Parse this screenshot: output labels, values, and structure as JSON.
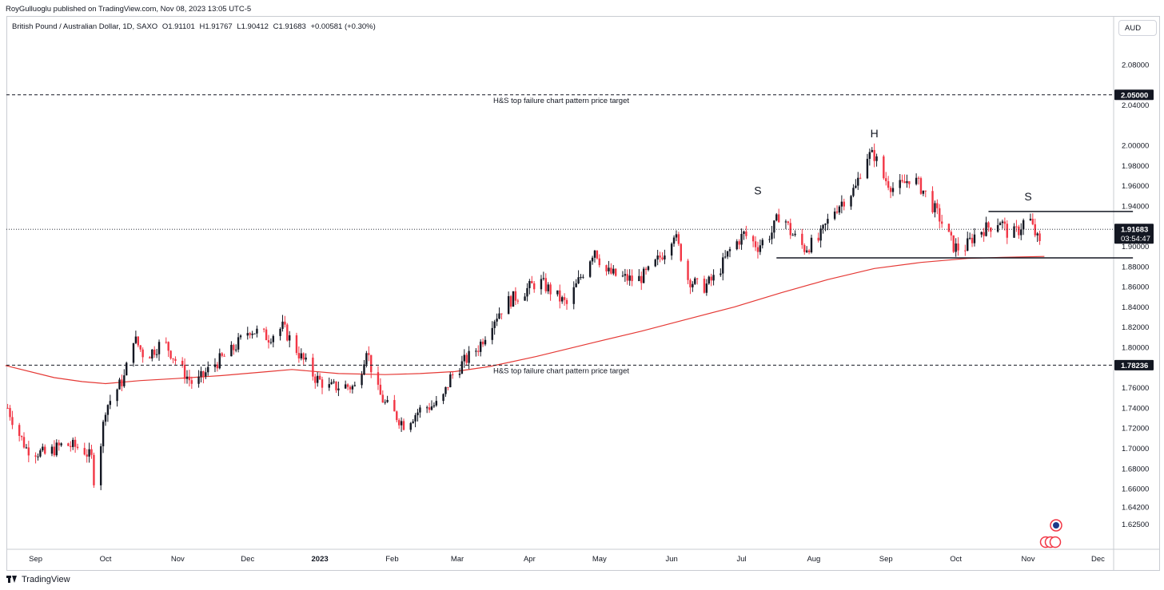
{
  "header": {
    "published": "RoyGulluoglu published on TradingView.com, Nov 08, 2023 13:05 UTC-5"
  },
  "legend": {
    "symbol": "British Pound / Australian Dollar, 1D, SAXO",
    "open": "O1.91101",
    "high": "H1.91767",
    "low": "L1.90412",
    "close": "C1.91683",
    "change": "+0.00581 (+0.30%)"
  },
  "currency": "AUD",
  "footer": {
    "brand": "TradingView"
  },
  "chart_data": {
    "type": "candlestick",
    "ylim": [
      1.614,
      2.108
    ],
    "y_ticks": [
      "2.08000",
      "2.04000",
      "2.00000",
      "1.98000",
      "1.96000",
      "1.94000",
      "1.90000",
      "1.88000",
      "1.86000",
      "1.84000",
      "1.82000",
      "1.80000",
      "1.76000",
      "1.74000",
      "1.72000",
      "1.70000",
      "1.68000",
      "1.66000",
      "1.64200",
      "1.62500"
    ],
    "x_labels": [
      {
        "label": "Sep",
        "day": 0
      },
      {
        "label": "Oct",
        "day": 30
      },
      {
        "label": "Nov",
        "day": 61
      },
      {
        "label": "Dec",
        "day": 91
      },
      {
        "label": "2023",
        "day": 122
      },
      {
        "label": "Feb",
        "day": 153
      },
      {
        "label": "Mar",
        "day": 181
      },
      {
        "label": "Apr",
        "day": 212
      },
      {
        "label": "May",
        "day": 242
      },
      {
        "label": "Jun",
        "day": 273
      },
      {
        "label": "Jul",
        "day": 303
      },
      {
        "label": "Aug",
        "day": 334
      },
      {
        "label": "Sep",
        "day": 365
      },
      {
        "label": "Oct",
        "day": 395
      },
      {
        "label": "Nov",
        "day": 426
      },
      {
        "label": "Dec",
        "day": 456
      }
    ],
    "xlim_days": [
      -13,
      488
    ],
    "last_day": 433,
    "price_path": [
      [
        -12,
        1.74
      ],
      [
        -8,
        1.718
      ],
      [
        -4,
        1.7
      ],
      [
        4,
        1.694
      ],
      [
        12,
        1.704
      ],
      [
        20,
        1.7
      ],
      [
        24,
        1.69
      ],
      [
        26,
        1.65
      ],
      [
        28,
        1.706
      ],
      [
        30,
        1.74
      ],
      [
        38,
        1.77
      ],
      [
        42,
        1.81
      ],
      [
        47,
        1.79
      ],
      [
        55,
        1.806
      ],
      [
        62,
        1.78
      ],
      [
        68,
        1.762
      ],
      [
        76,
        1.782
      ],
      [
        84,
        1.796
      ],
      [
        92,
        1.818
      ],
      [
        100,
        1.81
      ],
      [
        106,
        1.82
      ],
      [
        114,
        1.79
      ],
      [
        120,
        1.77
      ],
      [
        126,
        1.76
      ],
      [
        132,
        1.762
      ],
      [
        138,
        1.76
      ],
      [
        142,
        1.8
      ],
      [
        146,
        1.76
      ],
      [
        150,
        1.744
      ],
      [
        158,
        1.724
      ],
      [
        166,
        1.74
      ],
      [
        174,
        1.744
      ],
      [
        178,
        1.77
      ],
      [
        184,
        1.786
      ],
      [
        190,
        1.8
      ],
      [
        196,
        1.826
      ],
      [
        202,
        1.844
      ],
      [
        210,
        1.856
      ],
      [
        216,
        1.866
      ],
      [
        222,
        1.854
      ],
      [
        228,
        1.842
      ],
      [
        234,
        1.87
      ],
      [
        240,
        1.898
      ],
      [
        244,
        1.876
      ],
      [
        250,
        1.87
      ],
      [
        258,
        1.866
      ],
      [
        264,
        1.876
      ],
      [
        270,
        1.896
      ],
      [
        274,
        1.914
      ],
      [
        280,
        1.868
      ],
      [
        286,
        1.858
      ],
      [
        292,
        1.87
      ],
      [
        298,
        1.896
      ],
      [
        304,
        1.912
      ],
      [
        310,
        1.9
      ],
      [
        316,
        1.914
      ],
      [
        320,
        1.936
      ],
      [
        324,
        1.914
      ],
      [
        330,
        1.898
      ],
      [
        336,
        1.906
      ],
      [
        342,
        1.934
      ],
      [
        346,
        1.944
      ],
      [
        352,
        1.958
      ],
      [
        356,
        1.99
      ],
      [
        360,
        1.99
      ],
      [
        364,
        1.968
      ],
      [
        368,
        1.958
      ],
      [
        372,
        1.96
      ],
      [
        376,
        1.97
      ],
      [
        382,
        1.952
      ],
      [
        388,
        1.928
      ],
      [
        394,
        1.9
      ],
      [
        398,
        1.896
      ],
      [
        404,
        1.914
      ],
      [
        410,
        1.92
      ],
      [
        414,
        1.926
      ],
      [
        418,
        1.91
      ],
      [
        422,
        1.916
      ],
      [
        426,
        1.932
      ],
      [
        428,
        1.918
      ],
      [
        432,
        1.896
      ],
      [
        436,
        1.904
      ],
      [
        438,
        1.916
      ]
    ],
    "ma_color": "#e53935",
    "ma_line": [
      [
        -13,
        1.782
      ],
      [
        8,
        1.77
      ],
      [
        20,
        1.766
      ],
      [
        30,
        1.764
      ],
      [
        45,
        1.767
      ],
      [
        60,
        1.769
      ],
      [
        80,
        1.772
      ],
      [
        100,
        1.776
      ],
      [
        110,
        1.778
      ],
      [
        130,
        1.774
      ],
      [
        150,
        1.773
      ],
      [
        165,
        1.774
      ],
      [
        180,
        1.776
      ],
      [
        195,
        1.781
      ],
      [
        215,
        1.791
      ],
      [
        240,
        1.805
      ],
      [
        260,
        1.816
      ],
      [
        280,
        1.828
      ],
      [
        300,
        1.84
      ],
      [
        320,
        1.854
      ],
      [
        340,
        1.867
      ],
      [
        360,
        1.878
      ],
      [
        380,
        1.884
      ],
      [
        400,
        1.888
      ],
      [
        415,
        1.889
      ],
      [
        433,
        1.89
      ]
    ],
    "annotations": [
      {
        "type": "hline",
        "price": 2.05,
        "label": "2.05000",
        "text": "H&S top failure chart pattern price target"
      },
      {
        "type": "hline",
        "price": 1.78236,
        "label": "1.78236",
        "text": "H&S top failure chart pattern price target"
      },
      {
        "type": "hline_dotted",
        "price": 1.91683
      },
      {
        "type": "segment",
        "from_day": 318,
        "to_day": 471,
        "price": 1.8885
      },
      {
        "type": "segment",
        "from_day": 409,
        "to_day": 471,
        "price": 1.9345
      },
      {
        "type": "text",
        "text": "S",
        "day": 310,
        "price": 1.9515
      },
      {
        "type": "text",
        "text": "H",
        "day": 360,
        "price": 2.008
      },
      {
        "type": "text",
        "text": "S",
        "day": 426,
        "price": 1.9455
      }
    ],
    "price_label": {
      "price": "1.91683",
      "countdown": "03:54:47",
      "color": "#131722"
    },
    "up_color": "#131722",
    "down_color": "#f23645"
  }
}
